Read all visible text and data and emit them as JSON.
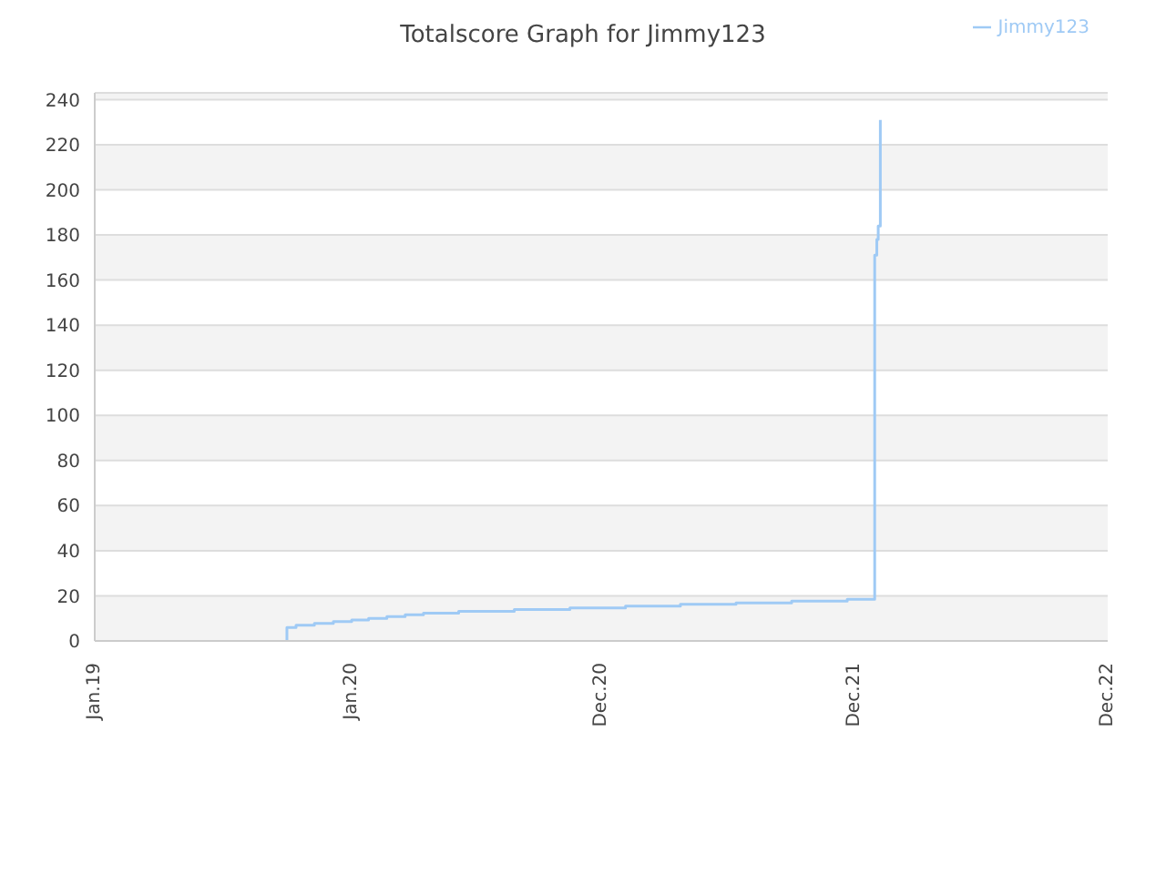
{
  "chart_data": {
    "type": "step",
    "title": "Totalscore Graph for Jimmy123",
    "x": [
      "2019-10-01",
      "2019-10-01",
      "2019-10-14",
      "2019-11-09",
      "2019-12-06",
      "2020-01-01",
      "2020-01-25",
      "2020-02-20",
      "2020-03-17",
      "2020-04-12",
      "2020-06-01",
      "2020-08-19",
      "2020-11-06",
      "2021-01-24",
      "2021-04-12",
      "2021-06-30",
      "2021-09-17",
      "2021-12-05",
      "2022-01-13",
      "2022-01-16",
      "2022-01-18",
      "2022-01-21"
    ],
    "series": [
      {
        "name": "Jimmy123",
        "color": "#9fcaf5",
        "values": [
          0,
          6,
          7,
          7.8,
          8.6,
          9.3,
          10,
          10.8,
          11.6,
          12.3,
          13.1,
          13.9,
          14.6,
          15.4,
          16.2,
          16.9,
          17.7,
          18.5,
          171,
          178,
          184,
          231
        ]
      }
    ],
    "xlim": [
      "2019-01-01",
      "2022-12-10"
    ],
    "xticks": [
      {
        "value": "2019-01-01",
        "label": "Jan.19"
      },
      {
        "value": "2020-01-01",
        "label": "Jan.20"
      },
      {
        "value": "2020-12-20",
        "label": "Dec.20"
      },
      {
        "value": "2021-12-15",
        "label": "Dec.21"
      },
      {
        "value": "2022-12-10",
        "label": "Dec.22"
      }
    ],
    "ylim": [
      0,
      243
    ],
    "yticks": [
      0,
      20,
      40,
      60,
      80,
      100,
      120,
      140,
      160,
      180,
      200,
      220,
      240
    ],
    "grid": "y",
    "legend": "top right",
    "marker": "none",
    "line_style": "solid"
  }
}
